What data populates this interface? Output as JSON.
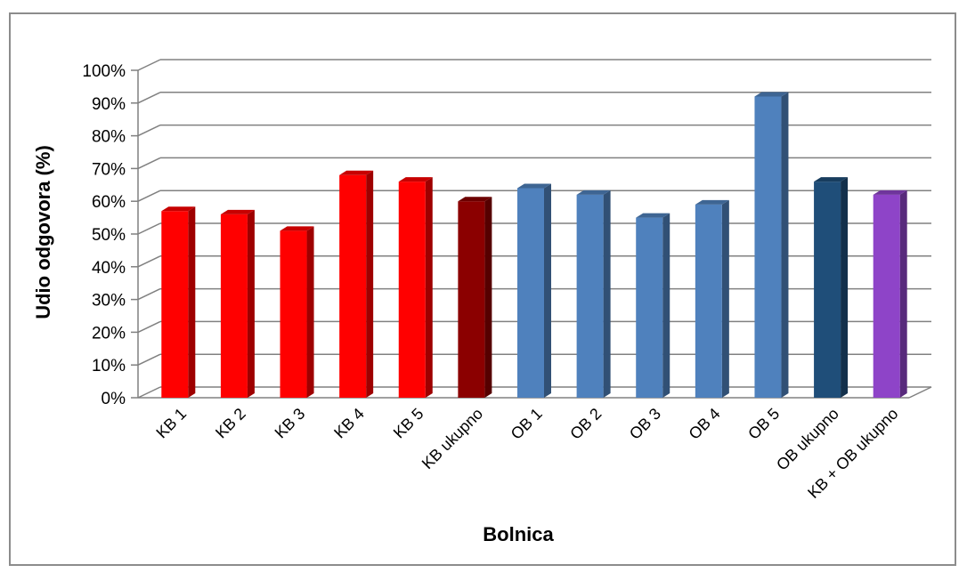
{
  "chart_data": {
    "type": "bar",
    "xlabel": "Bolnica",
    "ylabel": "Udio odgovora (%)",
    "ylim": [
      0,
      100
    ],
    "y_ticks": [
      "0%",
      "10%",
      "20%",
      "30%",
      "40%",
      "50%",
      "60%",
      "70%",
      "80%",
      "90%",
      "100%"
    ],
    "grid": true,
    "legend": "none",
    "style": "3d-columns",
    "categories": [
      "KB 1",
      "KB 2",
      "KB 3",
      "KB 4",
      "KB 5",
      "KB ukupno",
      "OB 1",
      "OB 2",
      "OB 3",
      "OB 4",
      "OB 5",
      "OB ukupno",
      "KB + OB ukupno"
    ],
    "values": [
      57,
      56,
      51,
      68,
      66,
      60,
      64,
      62,
      55,
      59,
      92,
      66,
      62
    ],
    "bar_colors": [
      "#ff0000",
      "#ff0000",
      "#ff0000",
      "#ff0000",
      "#ff0000",
      "#8b0000",
      "#4f81bd",
      "#4f81bd",
      "#4f81bd",
      "#4f81bd",
      "#4f81bd",
      "#1f4e79",
      "#8e44c8"
    ]
  }
}
